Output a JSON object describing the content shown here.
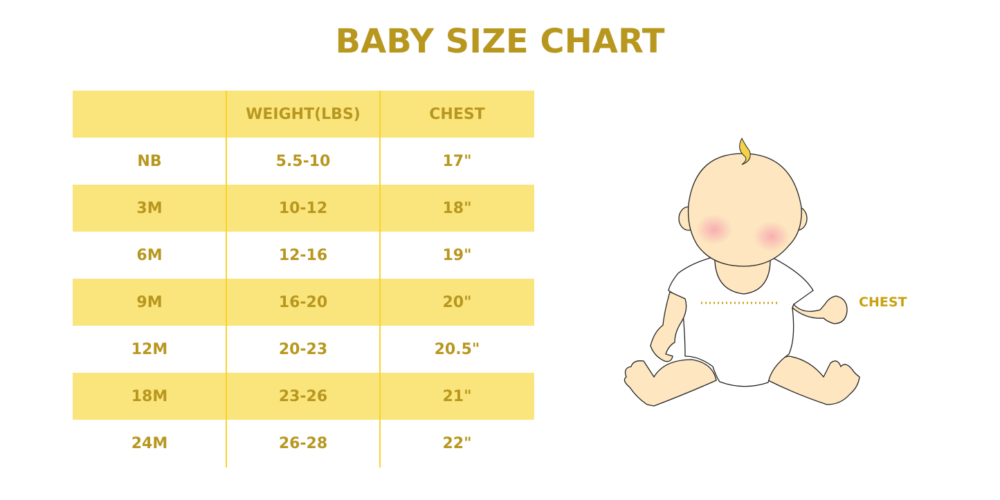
{
  "title": "BABY SIZE CHART",
  "table": {
    "headers": [
      "",
      "WEIGHT(LBS)",
      "CHEST"
    ],
    "rows": [
      [
        "NB",
        "5.5-10",
        "17\""
      ],
      [
        "3M",
        "10-12",
        "18\""
      ],
      [
        "6M",
        "12-16",
        "19\""
      ],
      [
        "9M",
        "16-20",
        "20\""
      ],
      [
        "12M",
        "20-23",
        "20.5\""
      ],
      [
        "18M",
        "23-26",
        "21\""
      ],
      [
        "24M",
        "26-28",
        "22\""
      ]
    ]
  },
  "illustration": {
    "chest_label": "CHEST"
  },
  "colors": {
    "accent_text": "#b8971f",
    "row_band": "#fae57c",
    "divider": "#f7d42a"
  }
}
